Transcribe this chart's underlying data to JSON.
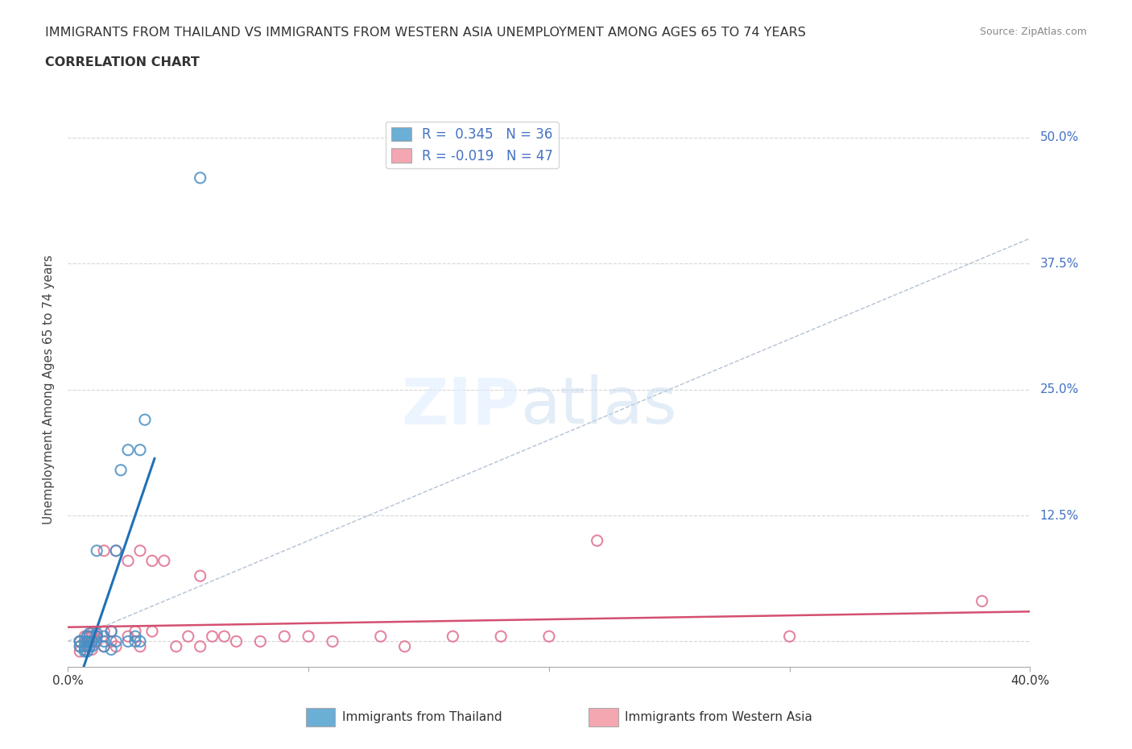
{
  "title_line1": "IMMIGRANTS FROM THAILAND VS IMMIGRANTS FROM WESTERN ASIA UNEMPLOYMENT AMONG AGES 65 TO 74 YEARS",
  "title_line2": "CORRELATION CHART",
  "source_text": "Source: ZipAtlas.com",
  "ylabel": "Unemployment Among Ages 65 to 74 years",
  "xlim": [
    0.0,
    0.4
  ],
  "ylim": [
    -0.025,
    0.525
  ],
  "ytick_positions": [
    0.0,
    0.125,
    0.25,
    0.375,
    0.5
  ],
  "ytick_labels": [
    "",
    "12.5%",
    "25.0%",
    "37.5%",
    "50.0%"
  ],
  "thailand_color": "#6baed6",
  "thailand_edge_color": "#4a90c4",
  "western_asia_color": "#f4a7b0",
  "western_asia_edge_color": "#e07090",
  "trend_blue": "#2171b5",
  "trend_pink": "#d45070",
  "thailand_R": 0.345,
  "thailand_N": 36,
  "western_asia_R": -0.019,
  "western_asia_N": 47,
  "background_color": "#ffffff",
  "grid_color": "#cccccc",
  "legend_label_thailand": "Immigrants from Thailand",
  "legend_label_western_asia": "Immigrants from Western Asia",
  "thailand_scatter_x": [
    0.005,
    0.005,
    0.005,
    0.007,
    0.007,
    0.007,
    0.007,
    0.008,
    0.008,
    0.008,
    0.008,
    0.009,
    0.009,
    0.009,
    0.01,
    0.01,
    0.01,
    0.012,
    0.012,
    0.012,
    0.015,
    0.015,
    0.015,
    0.018,
    0.018,
    0.02,
    0.02,
    0.022,
    0.025,
    0.025,
    0.028,
    0.028,
    0.03,
    0.03,
    0.032,
    0.055
  ],
  "thailand_scatter_y": [
    0.0,
    0.0,
    -0.005,
    0.0,
    -0.005,
    -0.008,
    -0.01,
    0.0,
    -0.005,
    -0.01,
    0.005,
    0.005,
    0.008,
    -0.005,
    0.0,
    0.0,
    -0.005,
    0.005,
    0.008,
    0.09,
    0.005,
    0.0,
    -0.005,
    0.01,
    -0.008,
    0.09,
    0.0,
    0.17,
    0.0,
    0.19,
    0.0,
    0.005,
    0.0,
    0.19,
    0.22,
    0.46
  ],
  "western_asia_scatter_x": [
    0.005,
    0.005,
    0.005,
    0.007,
    0.008,
    0.008,
    0.009,
    0.009,
    0.01,
    0.01,
    0.01,
    0.012,
    0.012,
    0.015,
    0.015,
    0.015,
    0.018,
    0.018,
    0.02,
    0.02,
    0.025,
    0.025,
    0.028,
    0.03,
    0.03,
    0.035,
    0.035,
    0.04,
    0.045,
    0.05,
    0.055,
    0.055,
    0.06,
    0.065,
    0.07,
    0.08,
    0.09,
    0.1,
    0.11,
    0.13,
    0.14,
    0.16,
    0.18,
    0.2,
    0.22,
    0.3,
    0.38
  ],
  "western_asia_scatter_y": [
    0.0,
    -0.005,
    -0.01,
    0.005,
    0.0,
    0.005,
    0.0,
    -0.005,
    0.005,
    0.008,
    -0.008,
    0.005,
    0.0,
    0.01,
    -0.005,
    0.09,
    0.01,
    0.0,
    0.09,
    -0.005,
    0.08,
    0.005,
    0.01,
    0.09,
    -0.005,
    0.08,
    0.01,
    0.08,
    -0.005,
    0.005,
    0.065,
    -0.005,
    0.005,
    0.005,
    0.0,
    0.0,
    0.005,
    0.005,
    0.0,
    0.005,
    -0.005,
    0.005,
    0.005,
    0.005,
    0.1,
    0.005,
    0.04
  ]
}
